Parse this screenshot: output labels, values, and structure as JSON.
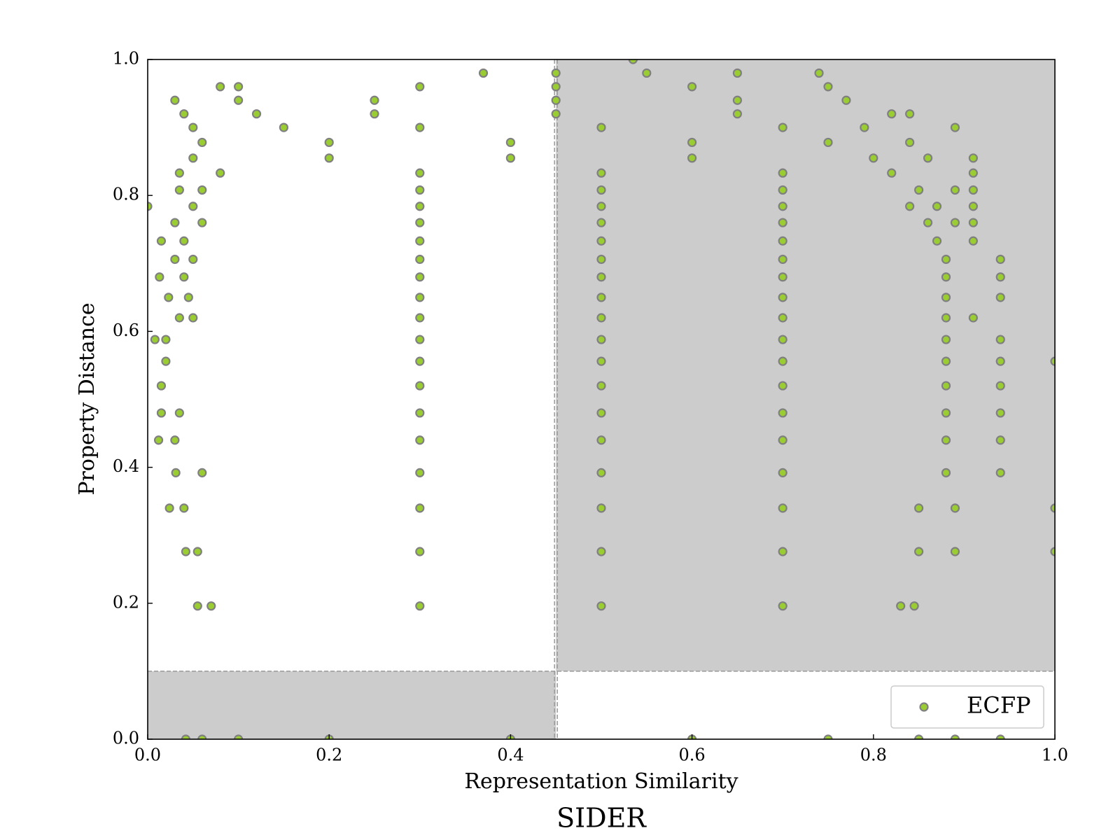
{
  "chart_data": {
    "type": "scatter",
    "title": "SIDER",
    "x_label": "Representation Similarity",
    "y_label": "Property Distance",
    "xlim": [
      0,
      1
    ],
    "ylim": [
      0,
      1
    ],
    "xticks": [
      {
        "value": 0,
        "label": "0.0"
      },
      0.2,
      0.4,
      0.6,
      0.8,
      {
        "value": 1,
        "label": "1.0"
      }
    ],
    "yticks": [
      {
        "value": 0,
        "label": "0.0"
      },
      0.2,
      0.4,
      0.6,
      0.8,
      {
        "value": 1,
        "label": "1.0"
      }
    ],
    "thresholds": {
      "x": 0.45,
      "y": 0.1
    },
    "shade_color": "#cccccc",
    "legend": "lower right",
    "series": [
      {
        "name": "ECFP",
        "color": "#9acd32",
        "edgecolor": "#808080",
        "x": [
          0.535,
          0.37,
          0.45,
          0.55,
          0.65,
          0.74,
          0.08,
          0.1,
          0.3,
          0.45,
          0.6,
          0.75,
          0.03,
          0.1,
          0.25,
          0.45,
          0.65,
          0.77,
          0.04,
          0.12,
          0.25,
          0.45,
          0.65,
          0.82,
          0.84,
          0.05,
          0.15,
          0.3,
          0.5,
          0.7,
          0.79,
          0.89,
          0.06,
          0.2,
          0.4,
          0.6,
          0.75,
          0.84,
          0.05,
          0.2,
          0.4,
          0.6,
          0.8,
          0.86,
          0.91,
          0.035,
          0.08,
          0.3,
          0.5,
          0.7,
          0.82,
          0.91,
          0.035,
          0.06,
          0.3,
          0.5,
          0.7,
          0.85,
          0.89,
          0.91,
          0,
          0.05,
          0.3,
          0.5,
          0.7,
          0.84,
          0.87,
          0.91,
          0.03,
          0.06,
          0.3,
          0.5,
          0.7,
          0.86,
          0.89,
          0.91,
          0.015,
          0.04,
          0.3,
          0.5,
          0.7,
          0.87,
          0.91,
          0.03,
          0.05,
          0.3,
          0.5,
          0.7,
          0.88,
          0.94,
          0.013,
          0.04,
          0.3,
          0.5,
          0.7,
          0.88,
          0.94,
          0.023,
          0.045,
          0.3,
          0.5,
          0.7,
          0.88,
          0.94,
          0.035,
          0.05,
          0.3,
          0.5,
          0.7,
          0.88,
          0.91,
          0.008,
          0.02,
          0.3,
          0.5,
          0.7,
          0.88,
          0.94,
          0.02,
          0.3,
          0.5,
          0.7,
          0.88,
          0.94,
          1,
          0.015,
          0.3,
          0.5,
          0.7,
          0.88,
          0.94,
          0.015,
          0.035,
          0.3,
          0.5,
          0.7,
          0.88,
          0.94,
          0.012,
          0.03,
          0.3,
          0.5,
          0.7,
          0.88,
          0.94,
          0.031,
          0.06,
          0.3,
          0.5,
          0.7,
          0.88,
          0.94,
          0.024,
          0.04,
          0.3,
          0.5,
          0.7,
          0.85,
          0.89,
          1,
          0.042,
          0.055,
          0.3,
          0.5,
          0.7,
          0.85,
          0.89,
          1,
          0.055,
          0.07,
          0.3,
          0.5,
          0.7,
          0.83,
          0.845,
          0.042,
          0.06,
          0.1,
          0.2,
          0.4,
          0.6,
          0.75,
          0.85,
          0.89,
          0.94
        ],
        "y": [
          1,
          0.98,
          0.98,
          0.98,
          0.98,
          0.98,
          0.96,
          0.96,
          0.96,
          0.96,
          0.96,
          0.96,
          0.94,
          0.94,
          0.94,
          0.94,
          0.94,
          0.94,
          0.92,
          0.92,
          0.92,
          0.92,
          0.92,
          0.92,
          0.92,
          0.9,
          0.9,
          0.9,
          0.9,
          0.9,
          0.9,
          0.9,
          0.878,
          0.878,
          0.878,
          0.878,
          0.878,
          0.878,
          0.855,
          0.855,
          0.855,
          0.855,
          0.855,
          0.855,
          0.855,
          0.833,
          0.833,
          0.833,
          0.833,
          0.833,
          0.833,
          0.833,
          0.808,
          0.808,
          0.808,
          0.808,
          0.808,
          0.808,
          0.808,
          0.808,
          0.784,
          0.784,
          0.784,
          0.784,
          0.784,
          0.784,
          0.784,
          0.784,
          0.76,
          0.76,
          0.76,
          0.76,
          0.76,
          0.76,
          0.76,
          0.76,
          0.733,
          0.733,
          0.733,
          0.733,
          0.733,
          0.733,
          0.733,
          0.706,
          0.706,
          0.706,
          0.706,
          0.706,
          0.706,
          0.706,
          0.68,
          0.68,
          0.68,
          0.68,
          0.68,
          0.68,
          0.68,
          0.65,
          0.65,
          0.65,
          0.65,
          0.65,
          0.65,
          0.65,
          0.62,
          0.62,
          0.62,
          0.62,
          0.62,
          0.62,
          0.62,
          0.588,
          0.588,
          0.588,
          0.588,
          0.588,
          0.588,
          0.588,
          0.556,
          0.556,
          0.556,
          0.556,
          0.556,
          0.556,
          0.556,
          0.52,
          0.52,
          0.52,
          0.52,
          0.52,
          0.52,
          0.48,
          0.48,
          0.48,
          0.48,
          0.48,
          0.48,
          0.48,
          0.44,
          0.44,
          0.44,
          0.44,
          0.44,
          0.44,
          0.44,
          0.392,
          0.392,
          0.392,
          0.392,
          0.392,
          0.392,
          0.392,
          0.34,
          0.34,
          0.34,
          0.34,
          0.34,
          0.34,
          0.34,
          0.34,
          0.276,
          0.276,
          0.276,
          0.276,
          0.276,
          0.276,
          0.276,
          0.276,
          0.196,
          0.196,
          0.196,
          0.196,
          0.196,
          0.196,
          0.196,
          0,
          0,
          0,
          0,
          0,
          0,
          0,
          0,
          0,
          0
        ]
      }
    ]
  }
}
